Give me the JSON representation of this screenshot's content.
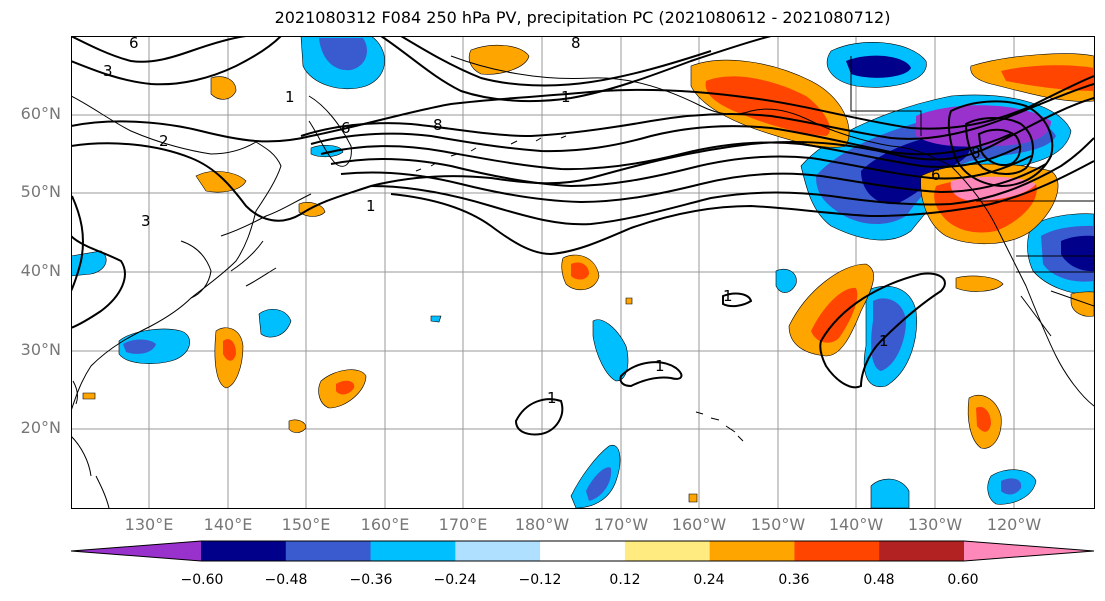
{
  "title": "2021080312 F084 250 hPa PV, precipitation PC (2021080612 - 2021080712)",
  "lat_labels": [
    "60°N",
    "50°N",
    "40°N",
    "30°N",
    "20°N"
  ],
  "lon_labels": [
    "130°E",
    "140°E",
    "150°E",
    "160°E",
    "170°E",
    "180°W",
    "170°W",
    "160°W",
    "150°W",
    "140°W",
    "130°W",
    "120°W"
  ],
  "pv_contour_labels": [
    "1",
    "3",
    "6",
    "8",
    "1",
    "3",
    "2",
    "6",
    "8",
    "1",
    "1",
    "1",
    "1",
    "1",
    "6",
    "8"
  ],
  "colorbar": {
    "tick_labels": [
      "−0.60",
      "−0.48",
      "−0.36",
      "−0.24",
      "−0.12",
      "0.12",
      "0.24",
      "0.36",
      "0.48",
      "0.60"
    ],
    "colors": [
      "#9932cc",
      "#00008b",
      "#3a5bd0",
      "#00bfff",
      "#b0e0ff",
      "#ffffff",
      "#ffeb80",
      "#ffa500",
      "#ff4500",
      "#b22222",
      "#ff88bb"
    ]
  },
  "colors": {
    "contour": "#000000",
    "coastline": "#000000",
    "grid": "#999999",
    "axis_label": "#777777"
  }
}
